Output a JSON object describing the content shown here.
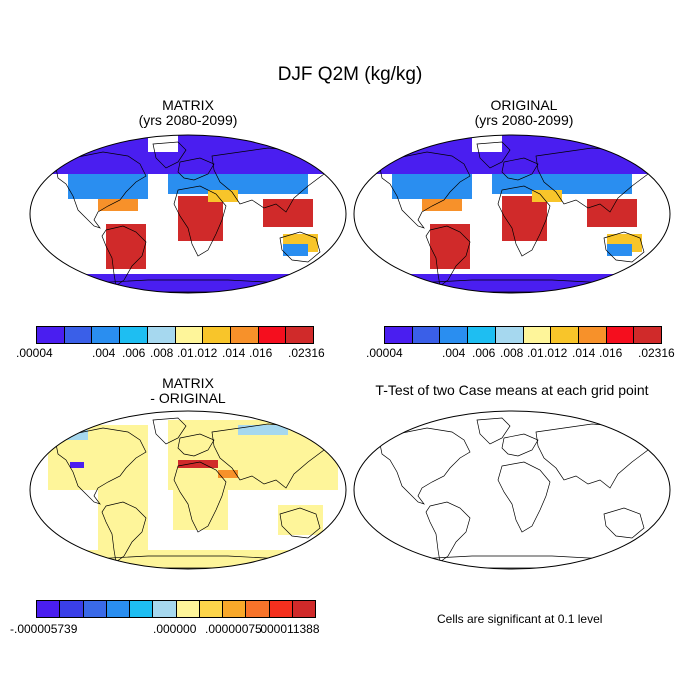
{
  "main_title": "DJF Q2M (kg/kg)",
  "panels": {
    "top_left": {
      "line1": "MATRIX",
      "line2": "(yrs 2080-2099)"
    },
    "top_right": {
      "line1": "ORIGINAL",
      "line2": "(yrs 2080-2099)"
    },
    "bottom_left": {
      "line1": "MATRIX",
      "line2": "- ORIGINAL"
    },
    "bottom_right": {
      "line1": "T-Test of two Case means at each grid point"
    }
  },
  "colorbar_abs": {
    "colors": [
      "#4a1ef0",
      "#3a5fe8",
      "#2a8ef0",
      "#1ebef2",
      "#a6d8ef",
      "#fef59a",
      "#f8c52a",
      "#f7912a",
      "#f50e1e",
      "#d02a2a"
    ],
    "labels": {
      "min": ".00004",
      "l1": ".004",
      "l2": ".006",
      "l3": ".008",
      "l4": ".01",
      "l5": ".012",
      "l6": ".014",
      "l7": ".016",
      "max": ".02316"
    }
  },
  "colorbar_diff": {
    "colors": [
      "#4a1ef0",
      "#3a3fe8",
      "#3a6ae8",
      "#2a8ef0",
      "#1ebef2",
      "#a6d8ef",
      "#fef59a",
      "#fdd54a",
      "#f8a82a",
      "#f7732a",
      "#f5301e",
      "#d02a2a"
    ],
    "labels": {
      "min": "-.000005739",
      "mid": ".000000",
      "l1": ".00000075",
      "max": ".000011388"
    }
  },
  "significance_note": "Cells are significant at 0.1 level"
}
